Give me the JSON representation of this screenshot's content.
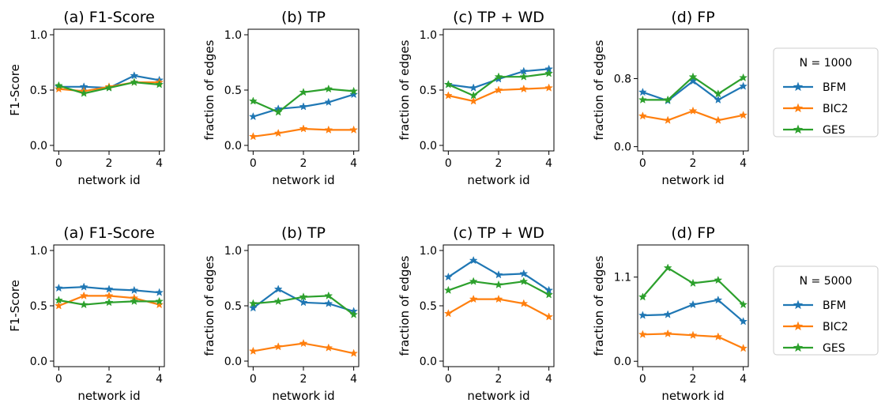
{
  "chart_data": [
    {
      "type": "line",
      "title": "(a) F1-Score",
      "xlabel": "network id",
      "ylabel": "F1-Score",
      "x": [
        0,
        1,
        2,
        3,
        4
      ],
      "xlim": [
        -0.2,
        4.2
      ],
      "ylim": [
        -0.05,
        1.05
      ],
      "xticks": [
        0,
        2,
        4
      ],
      "yticks": [
        0.0,
        0.5,
        1.0
      ],
      "ytick_labels": [
        "0.0",
        "0.5",
        "1.0"
      ],
      "series": [
        {
          "name": "BFM",
          "values": [
            0.53,
            0.53,
            0.52,
            0.63,
            0.59
          ]
        },
        {
          "name": "BIC2",
          "values": [
            0.51,
            0.49,
            0.53,
            0.57,
            0.57
          ]
        },
        {
          "name": "GES",
          "values": [
            0.54,
            0.47,
            0.52,
            0.57,
            0.55
          ]
        }
      ]
    },
    {
      "type": "line",
      "title": "(b) TP",
      "xlabel": "network id",
      "ylabel": "fraction of edges",
      "x": [
        0,
        1,
        2,
        3,
        4
      ],
      "xlim": [
        -0.2,
        4.2
      ],
      "ylim": [
        -0.05,
        1.05
      ],
      "xticks": [
        0,
        2,
        4
      ],
      "yticks": [
        0.0,
        0.5,
        1.0
      ],
      "ytick_labels": [
        "0.0",
        "0.5",
        "1.0"
      ],
      "series": [
        {
          "name": "BFM",
          "values": [
            0.26,
            0.33,
            0.35,
            0.39,
            0.46
          ]
        },
        {
          "name": "BIC2",
          "values": [
            0.08,
            0.11,
            0.15,
            0.14,
            0.14
          ]
        },
        {
          "name": "GES",
          "values": [
            0.4,
            0.3,
            0.48,
            0.51,
            0.49
          ]
        }
      ]
    },
    {
      "type": "line",
      "title": "(c) TP + WD",
      "xlabel": "network id",
      "ylabel": "fraction of edges",
      "x": [
        0,
        1,
        2,
        3,
        4
      ],
      "xlim": [
        -0.2,
        4.2
      ],
      "ylim": [
        -0.05,
        1.05
      ],
      "xticks": [
        0,
        2,
        4
      ],
      "yticks": [
        0.0,
        0.5,
        1.0
      ],
      "ytick_labels": [
        "0.0",
        "0.5",
        "1.0"
      ],
      "series": [
        {
          "name": "BFM",
          "values": [
            0.55,
            0.52,
            0.6,
            0.67,
            0.69
          ]
        },
        {
          "name": "BIC2",
          "values": [
            0.45,
            0.4,
            0.5,
            0.51,
            0.52
          ]
        },
        {
          "name": "GES",
          "values": [
            0.55,
            0.45,
            0.62,
            0.62,
            0.65
          ]
        }
      ]
    },
    {
      "type": "line",
      "title": "(d) FP",
      "xlabel": "network id",
      "ylabel": "fraction of edges",
      "x": [
        0,
        1,
        2,
        3,
        4
      ],
      "xlim": [
        -0.2,
        4.2
      ],
      "ylim": [
        -0.05,
        1.38
      ],
      "xticks": [
        0,
        2,
        4
      ],
      "yticks": [
        0.0,
        0.8
      ],
      "ytick_labels": [
        "0.0",
        "0.8"
      ],
      "series": [
        {
          "name": "BFM",
          "values": [
            0.64,
            0.54,
            0.77,
            0.55,
            0.71
          ]
        },
        {
          "name": "BIC2",
          "values": [
            0.36,
            0.31,
            0.42,
            0.31,
            0.37
          ]
        },
        {
          "name": "GES",
          "values": [
            0.55,
            0.55,
            0.82,
            0.62,
            0.81
          ]
        }
      ]
    },
    {
      "type": "line",
      "title": "(a) F1-Score",
      "xlabel": "network id",
      "ylabel": "F1-Score",
      "x": [
        0,
        1,
        2,
        3,
        4
      ],
      "xlim": [
        -0.2,
        4.2
      ],
      "ylim": [
        -0.05,
        1.05
      ],
      "xticks": [
        0,
        2,
        4
      ],
      "yticks": [
        0.0,
        0.5,
        1.0
      ],
      "ytick_labels": [
        "0.0",
        "0.5",
        "1.0"
      ],
      "series": [
        {
          "name": "BFM",
          "values": [
            0.66,
            0.67,
            0.65,
            0.64,
            0.62
          ]
        },
        {
          "name": "BIC2",
          "values": [
            0.5,
            0.59,
            0.59,
            0.57,
            0.51
          ]
        },
        {
          "name": "GES",
          "values": [
            0.55,
            0.51,
            0.53,
            0.54,
            0.54
          ]
        }
      ]
    },
    {
      "type": "line",
      "title": "(b) TP",
      "xlabel": "network id",
      "ylabel": "fraction of edges",
      "x": [
        0,
        1,
        2,
        3,
        4
      ],
      "xlim": [
        -0.2,
        4.2
      ],
      "ylim": [
        -0.05,
        1.05
      ],
      "xticks": [
        0,
        2,
        4
      ],
      "yticks": [
        0.0,
        0.5,
        1.0
      ],
      "ytick_labels": [
        "0.0",
        "0.5",
        "1.0"
      ],
      "series": [
        {
          "name": "BFM",
          "values": [
            0.48,
            0.65,
            0.53,
            0.52,
            0.45
          ]
        },
        {
          "name": "BIC2",
          "values": [
            0.09,
            0.13,
            0.16,
            0.12,
            0.07
          ]
        },
        {
          "name": "GES",
          "values": [
            0.52,
            0.54,
            0.58,
            0.59,
            0.42
          ]
        }
      ]
    },
    {
      "type": "line",
      "title": "(c) TP + WD",
      "xlabel": "network id",
      "ylabel": "fraction of edges",
      "x": [
        0,
        1,
        2,
        3,
        4
      ],
      "xlim": [
        -0.2,
        4.2
      ],
      "ylim": [
        -0.05,
        1.05
      ],
      "xticks": [
        0,
        2,
        4
      ],
      "yticks": [
        0.0,
        0.5,
        1.0
      ],
      "ytick_labels": [
        "0.0",
        "0.5",
        "1.0"
      ],
      "series": [
        {
          "name": "BFM",
          "values": [
            0.76,
            0.91,
            0.78,
            0.79,
            0.64
          ]
        },
        {
          "name": "BIC2",
          "values": [
            0.43,
            0.56,
            0.56,
            0.52,
            0.4
          ]
        },
        {
          "name": "GES",
          "values": [
            0.64,
            0.72,
            0.69,
            0.72,
            0.6
          ]
        }
      ]
    },
    {
      "type": "line",
      "title": "(d) FP",
      "xlabel": "network id",
      "ylabel": "fraction of edges",
      "x": [
        0,
        1,
        2,
        3,
        4
      ],
      "xlim": [
        -0.2,
        4.2
      ],
      "ylim": [
        -0.07,
        1.52
      ],
      "xticks": [
        0,
        2,
        4
      ],
      "yticks": [
        0.0,
        1.1
      ],
      "ytick_labels": [
        "0.0",
        "1.1"
      ],
      "series": [
        {
          "name": "BFM",
          "values": [
            0.6,
            0.61,
            0.74,
            0.8,
            0.52
          ]
        },
        {
          "name": "BIC2",
          "values": [
            0.35,
            0.36,
            0.34,
            0.32,
            0.17
          ]
        },
        {
          "name": "GES",
          "values": [
            0.84,
            1.22,
            1.02,
            1.06,
            0.74
          ]
        }
      ]
    }
  ],
  "legends": [
    {
      "title": "N = 1000",
      "entries": [
        "BFM",
        "BIC2",
        "GES"
      ]
    },
    {
      "title": "N = 5000",
      "entries": [
        "BFM",
        "BIC2",
        "GES"
      ]
    }
  ],
  "colors": {
    "BFM": "#1f77b4",
    "BIC2": "#ff7f0e",
    "GES": "#2ca02c"
  }
}
